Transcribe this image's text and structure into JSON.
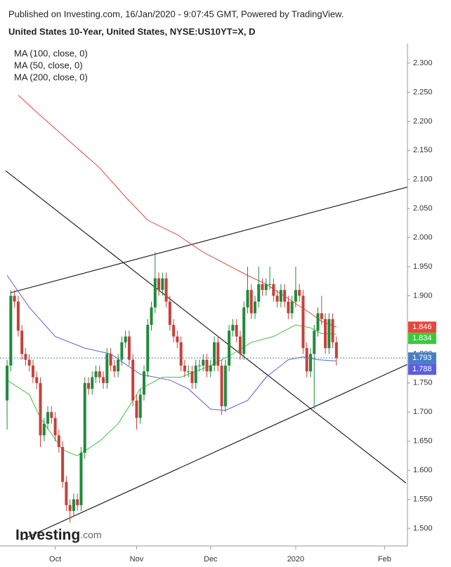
{
  "chart_data": {
    "type": "candlestick",
    "source": "Published on Investing.com, 16/Jan/2020 - 9:07:45 GMT, Powered by TradingView.",
    "title": "United States 10-Year, United States, NYSE:US10YT=X, D",
    "watermark": {
      "name": "Investing",
      "suffix": ".com"
    },
    "up_color": "#1f8a3c",
    "down_color": "#c8403a",
    "last_price_color": "#4a7ec5",
    "xlim": [
      -0.4,
      108.2
    ],
    "xticks": [
      {
        "value": 13,
        "label": "Oct"
      },
      {
        "value": 35,
        "label": "Nov"
      },
      {
        "value": 55,
        "label": "Dec"
      },
      {
        "value": 78,
        "label": "2020"
      },
      {
        "value": 102,
        "label": "Feb"
      }
    ],
    "ylim": [
      1.475,
      2.32
    ],
    "yticks": [
      {
        "value": 1.5,
        "label": "1.500"
      },
      {
        "value": 1.55,
        "label": "1.550"
      },
      {
        "value": 1.6,
        "label": "1.600"
      },
      {
        "value": 1.65,
        "label": "1.650"
      },
      {
        "value": 1.7,
        "label": "1.700"
      },
      {
        "value": 1.75,
        "label": "1.750"
      },
      {
        "value": 1.8,
        "label": "1.800"
      },
      {
        "value": 1.85,
        "label": "1.850"
      },
      {
        "value": 1.9,
        "label": "1.900"
      },
      {
        "value": 1.95,
        "label": "1.950"
      },
      {
        "value": 2.0,
        "label": "2.000"
      },
      {
        "value": 2.05,
        "label": "2.050"
      },
      {
        "value": 2.1,
        "label": "2.100"
      },
      {
        "value": 2.15,
        "label": "2.150"
      },
      {
        "value": 2.2,
        "label": "2.200"
      },
      {
        "value": 2.25,
        "label": "2.250"
      },
      {
        "value": 2.3,
        "label": "2.300"
      }
    ],
    "open": [
      1.72,
      1.78,
      1.9,
      1.89,
      1.84,
      1.8,
      1.79,
      1.78,
      1.76,
      1.75,
      1.66,
      1.68,
      1.7,
      1.69,
      1.66,
      1.64,
      1.58,
      1.54,
      1.53,
      1.55,
      1.54,
      1.63,
      1.75,
      1.74,
      1.76,
      1.77,
      1.76,
      1.75,
      1.8,
      1.78,
      1.77,
      1.79,
      1.82,
      1.83,
      1.79,
      1.72,
      1.69,
      1.73,
      1.77,
      1.85,
      1.88,
      1.93,
      1.91,
      1.93,
      1.89,
      1.85,
      1.83,
      1.82,
      1.78,
      1.77,
      1.77,
      1.75,
      1.78,
      1.78,
      1.79,
      1.77,
      1.78,
      1.82,
      1.78,
      1.71,
      1.78,
      1.84,
      1.85,
      1.83,
      1.8,
      1.88,
      1.91,
      1.87,
      1.89,
      1.92,
      1.91,
      1.92,
      1.92,
      1.9,
      1.89,
      1.91,
      1.89,
      1.87,
      1.89,
      1.91,
      1.9,
      1.81,
      1.77,
      1.8,
      1.84,
      1.87,
      1.86,
      1.81,
      1.86,
      1.82
    ],
    "high": [
      1.79,
      1.91,
      1.91,
      1.9,
      1.85,
      1.81,
      1.8,
      1.79,
      1.77,
      1.76,
      1.69,
      1.71,
      1.71,
      1.7,
      1.67,
      1.65,
      1.59,
      1.55,
      1.56,
      1.56,
      1.64,
      1.76,
      1.76,
      1.77,
      1.78,
      1.78,
      1.77,
      1.81,
      1.81,
      1.79,
      1.8,
      1.83,
      1.84,
      1.84,
      1.8,
      1.73,
      1.74,
      1.78,
      1.86,
      1.89,
      1.975,
      1.94,
      1.94,
      1.94,
      1.9,
      1.86,
      1.84,
      1.83,
      1.79,
      1.78,
      1.78,
      1.79,
      1.79,
      1.8,
      1.8,
      1.79,
      1.83,
      1.83,
      1.79,
      1.79,
      1.85,
      1.86,
      1.86,
      1.84,
      1.89,
      1.95,
      1.92,
      1.9,
      1.95,
      1.93,
      1.93,
      1.95,
      1.93,
      1.91,
      1.92,
      1.92,
      1.9,
      1.9,
      1.95,
      1.92,
      1.91,
      1.82,
      1.81,
      1.85,
      1.88,
      1.9,
      1.87,
      1.87,
      1.87,
      1.83
    ],
    "low": [
      1.67,
      1.77,
      1.88,
      1.83,
      1.79,
      1.78,
      1.77,
      1.75,
      1.74,
      1.64,
      1.65,
      1.67,
      1.68,
      1.65,
      1.63,
      1.57,
      1.53,
      1.51,
      1.52,
      1.53,
      1.53,
      1.62,
      1.73,
      1.73,
      1.75,
      1.75,
      1.74,
      1.74,
      1.77,
      1.76,
      1.76,
      1.78,
      1.81,
      1.78,
      1.71,
      1.67,
      1.68,
      1.72,
      1.76,
      1.84,
      1.87,
      1.9,
      1.9,
      1.88,
      1.84,
      1.82,
      1.81,
      1.77,
      1.76,
      1.76,
      1.74,
      1.74,
      1.77,
      1.77,
      1.76,
      1.76,
      1.77,
      1.77,
      1.695,
      1.7,
      1.77,
      1.83,
      1.82,
      1.79,
      1.79,
      1.87,
      1.86,
      1.86,
      1.88,
      1.9,
      1.9,
      1.91,
      1.89,
      1.88,
      1.88,
      1.88,
      1.86,
      1.86,
      1.88,
      1.89,
      1.8,
      1.76,
      1.76,
      1.705,
      1.83,
      1.85,
      1.8,
      1.8,
      1.81,
      1.78
    ],
    "close": [
      1.78,
      1.9,
      1.89,
      1.84,
      1.8,
      1.79,
      1.78,
      1.76,
      1.75,
      1.66,
      1.68,
      1.7,
      1.69,
      1.66,
      1.64,
      1.58,
      1.54,
      1.53,
      1.55,
      1.54,
      1.63,
      1.75,
      1.74,
      1.76,
      1.77,
      1.76,
      1.75,
      1.8,
      1.78,
      1.77,
      1.79,
      1.82,
      1.83,
      1.79,
      1.72,
      1.69,
      1.73,
      1.77,
      1.85,
      1.88,
      1.93,
      1.91,
      1.93,
      1.89,
      1.85,
      1.83,
      1.82,
      1.78,
      1.77,
      1.77,
      1.75,
      1.78,
      1.78,
      1.79,
      1.77,
      1.78,
      1.82,
      1.78,
      1.71,
      1.78,
      1.84,
      1.85,
      1.83,
      1.8,
      1.88,
      1.91,
      1.87,
      1.89,
      1.92,
      1.91,
      1.92,
      1.92,
      1.9,
      1.89,
      1.91,
      1.89,
      1.87,
      1.89,
      1.91,
      1.9,
      1.81,
      1.77,
      1.8,
      1.84,
      1.87,
      1.86,
      1.81,
      1.86,
      1.82,
      1.793
    ],
    "series": [
      {
        "name": "MA (100, close, 0)",
        "color": "#5a5ee0",
        "x": [
          0,
          6,
          13,
          21,
          28,
          36,
          44,
          49,
          55,
          59,
          65,
          70,
          76,
          80,
          84,
          89
        ],
        "values": [
          1.935,
          1.88,
          1.83,
          1.81,
          1.8,
          1.765,
          1.755,
          1.74,
          1.705,
          1.703,
          1.72,
          1.76,
          1.79,
          1.795,
          1.79,
          1.788
        ]
      },
      {
        "name": "MA (50, close, 0)",
        "color": "#3cc83c",
        "x": [
          0,
          6,
          9,
          15,
          19,
          25,
          30,
          36,
          42,
          47,
          55,
          61,
          66,
          72,
          78,
          82,
          85,
          89
        ],
        "values": [
          1.755,
          1.73,
          1.69,
          1.635,
          1.625,
          1.65,
          1.68,
          1.74,
          1.76,
          1.76,
          1.78,
          1.8,
          1.82,
          1.83,
          1.85,
          1.845,
          1.835,
          1.834
        ]
      },
      {
        "name": "MA (200, close, 0)",
        "color": "#e8463c",
        "x": [
          3,
          9,
          17,
          25,
          32,
          38,
          46,
          53,
          59,
          65,
          70,
          76,
          82,
          85,
          89
        ],
        "values": [
          2.245,
          2.21,
          2.165,
          2.12,
          2.07,
          2.03,
          2.005,
          1.975,
          1.955,
          1.935,
          1.92,
          1.895,
          1.87,
          1.856,
          1.846
        ]
      }
    ],
    "trendlines": [
      {
        "x": [
          0.8,
          108.2
        ],
        "values": [
          1.905,
          2.087
        ]
      },
      {
        "x": [
          -0.4,
          107.8
        ],
        "values": [
          2.115,
          1.578
        ]
      },
      {
        "x": [
          3.8,
          108.2
        ],
        "values": [
          1.48,
          1.782
        ]
      }
    ]
  }
}
